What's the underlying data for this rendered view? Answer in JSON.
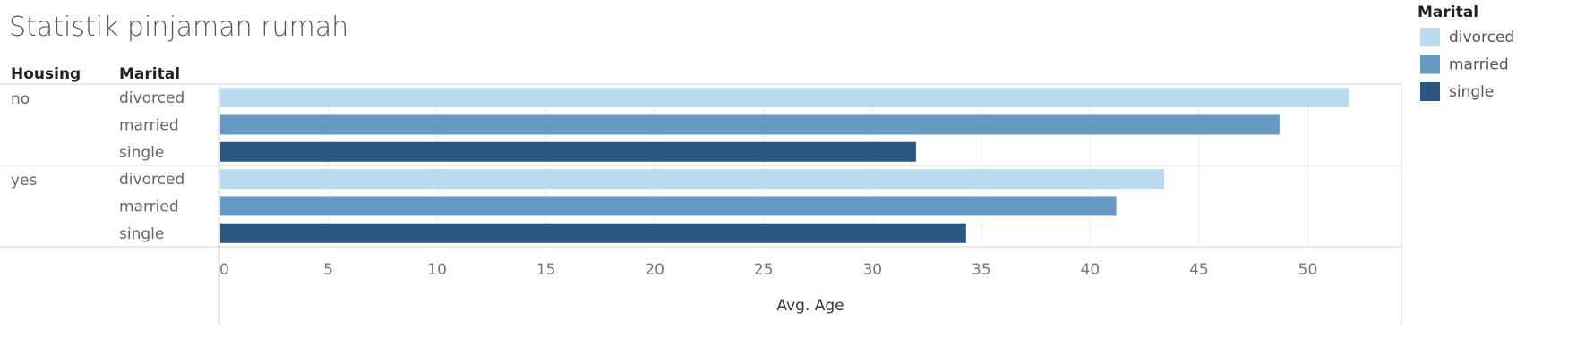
{
  "title": "Statistik pinjaman rumah",
  "headers": {
    "housing": "Housing",
    "marital": "Marital"
  },
  "legend": {
    "title": "Marital",
    "items": [
      {
        "label": "divorced",
        "color": "#b9dcf0"
      },
      {
        "label": "married",
        "color": "#6699c3"
      },
      {
        "label": "single",
        "color": "#2b5783"
      }
    ]
  },
  "chart_data": {
    "type": "bar",
    "orientation": "horizontal",
    "title": "Statistik pinjaman rumah",
    "xlabel": "Avg. Age",
    "xlim": [
      0,
      54.3
    ],
    "ticks": [
      "0",
      "5",
      "10",
      "15",
      "20",
      "25",
      "30",
      "35",
      "40",
      "45",
      "50"
    ],
    "grid": true,
    "legend_position": "top-right",
    "groups": [
      {
        "name": "no",
        "bars": [
          {
            "label": "divorced",
            "value": 51.9
          },
          {
            "label": "married",
            "value": 48.7
          },
          {
            "label": "single",
            "value": 32.0
          }
        ]
      },
      {
        "name": "yes",
        "bars": [
          {
            "label": "divorced",
            "value": 43.4
          },
          {
            "label": "married",
            "value": 41.2
          },
          {
            "label": "single",
            "value": 34.3
          }
        ]
      }
    ]
  }
}
